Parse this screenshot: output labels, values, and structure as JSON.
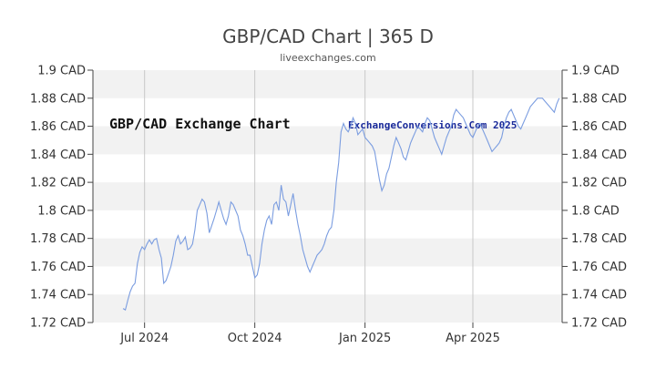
{
  "title": "GBP/CAD Chart | 365 D",
  "subtitle": "liveexchanges.com",
  "chart_data": {
    "type": "line",
    "title": "GBP/CAD Chart | 365 D",
    "inner_label": "GBP/CAD Exchange Chart",
    "watermark": "ExchangeConversions.Com 2025",
    "ylim": [
      1.72,
      1.9
    ],
    "y_ticks": [
      1.72,
      1.74,
      1.76,
      1.78,
      1.8,
      1.82,
      1.84,
      1.86,
      1.88,
      1.9
    ],
    "y_tick_labels": [
      "1.72 CAD",
      "1.74 CAD",
      "1.76 CAD",
      "1.78 CAD",
      "1.8 CAD",
      "1.82 CAD",
      "1.84 CAD",
      "1.86 CAD",
      "1.88 CAD",
      "1.9 CAD"
    ],
    "x_range": [
      0,
      365
    ],
    "x_ticks": [
      {
        "label": "Jul 2024",
        "x": 18
      },
      {
        "label": "Oct 2024",
        "x": 110
      },
      {
        "label": "Jan 2025",
        "x": 202
      },
      {
        "label": "Apr 2025",
        "x": 292
      }
    ],
    "grid": true,
    "series": [
      {
        "color": "#7b9de0",
        "x": [
          0,
          2,
          4,
          6,
          8,
          10,
          12,
          14,
          16,
          18,
          20,
          22,
          24,
          26,
          28,
          30,
          32,
          34,
          36,
          38,
          40,
          42,
          44,
          46,
          48,
          50,
          52,
          54,
          56,
          58,
          60,
          62,
          64,
          66,
          68,
          70,
          72,
          74,
          76,
          78,
          80,
          82,
          84,
          86,
          88,
          90,
          92,
          94,
          96,
          98,
          100,
          102,
          104,
          106,
          108,
          110,
          112,
          114,
          116,
          118,
          120,
          122,
          124,
          126,
          128,
          130,
          132,
          134,
          136,
          138,
          140,
          142,
          144,
          146,
          148,
          150,
          152,
          154,
          156,
          158,
          160,
          162,
          164,
          166,
          168,
          170,
          172,
          174,
          176,
          178,
          180,
          182,
          184,
          186,
          188,
          190,
          192,
          194,
          196,
          198,
          200,
          202,
          204,
          206,
          208,
          210,
          212,
          214,
          216,
          218,
          220,
          222,
          224,
          226,
          228,
          230,
          232,
          234,
          236,
          238,
          240,
          242,
          244,
          246,
          248,
          250,
          252,
          254,
          256,
          258,
          260,
          262,
          264,
          266,
          268,
          270,
          272,
          274,
          276,
          278,
          280,
          282,
          284,
          286,
          288,
          290,
          292,
          294,
          296,
          298,
          300,
          302,
          304,
          306,
          308,
          310,
          312,
          314,
          316,
          318,
          320,
          322,
          324,
          326,
          328,
          330,
          332,
          334,
          336,
          338,
          340,
          342,
          344,
          346,
          348,
          350,
          352,
          354,
          356,
          358,
          360,
          362,
          364
        ],
        "values": [
          1.73,
          1.729,
          1.736,
          1.742,
          1.746,
          1.748,
          1.762,
          1.77,
          1.774,
          1.772,
          1.776,
          1.779,
          1.776,
          1.779,
          1.78,
          1.772,
          1.766,
          1.748,
          1.75,
          1.755,
          1.76,
          1.768,
          1.778,
          1.782,
          1.776,
          1.778,
          1.781,
          1.772,
          1.773,
          1.776,
          1.786,
          1.8,
          1.804,
          1.808,
          1.806,
          1.798,
          1.784,
          1.789,
          1.794,
          1.8,
          1.806,
          1.8,
          1.794,
          1.79,
          1.796,
          1.806,
          1.804,
          1.8,
          1.796,
          1.786,
          1.782,
          1.776,
          1.768,
          1.768,
          1.76,
          1.752,
          1.754,
          1.762,
          1.776,
          1.786,
          1.793,
          1.796,
          1.79,
          1.804,
          1.806,
          1.8,
          1.818,
          1.808,
          1.806,
          1.796,
          1.804,
          1.812,
          1.8,
          1.79,
          1.782,
          1.772,
          1.766,
          1.76,
          1.756,
          1.76,
          1.764,
          1.768,
          1.77,
          1.772,
          1.776,
          1.782,
          1.786,
          1.788,
          1.8,
          1.82,
          1.834,
          1.856,
          1.862,
          1.858,
          1.856,
          1.86,
          1.866,
          1.862,
          1.854,
          1.856,
          1.858,
          1.852,
          1.85,
          1.848,
          1.846,
          1.842,
          1.832,
          1.822,
          1.814,
          1.818,
          1.826,
          1.83,
          1.838,
          1.846,
          1.852,
          1.848,
          1.844,
          1.838,
          1.836,
          1.842,
          1.848,
          1.852,
          1.856,
          1.86,
          1.858,
          1.856,
          1.862,
          1.866,
          1.864,
          1.858,
          1.852,
          1.848,
          1.844,
          1.84,
          1.846,
          1.852,
          1.856,
          1.86,
          1.868,
          1.872,
          1.87,
          1.868,
          1.866,
          1.862,
          1.858,
          1.854,
          1.852,
          1.856,
          1.86,
          1.862,
          1.858,
          1.854,
          1.85,
          1.846,
          1.842,
          1.844,
          1.846,
          1.848,
          1.852,
          1.86,
          1.866,
          1.87,
          1.872,
          1.868,
          1.864,
          1.86,
          1.858,
          1.862,
          1.866,
          1.87,
          1.874,
          1.876,
          1.878,
          1.88,
          1.88,
          1.88,
          1.878,
          1.876,
          1.874,
          1.872,
          1.87,
          1.876,
          1.88
        ]
      }
    ]
  }
}
